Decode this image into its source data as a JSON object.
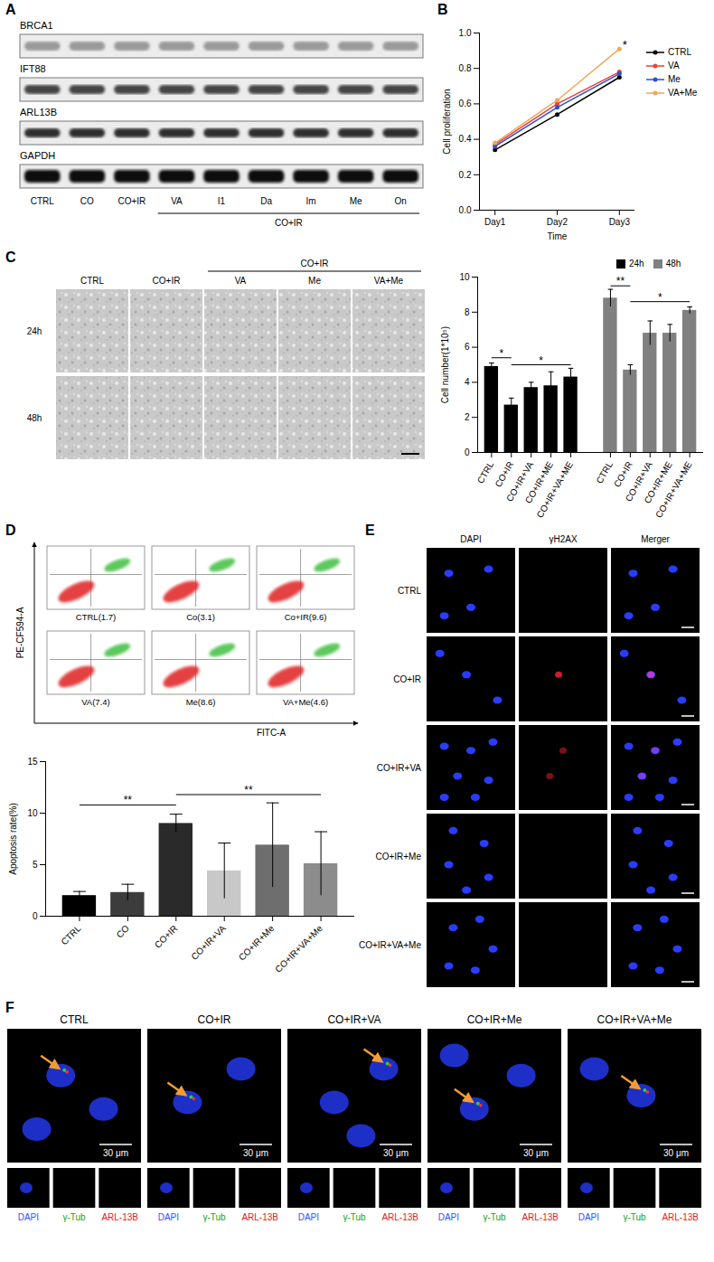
{
  "western_blot": {
    "panel": "A",
    "proteins": [
      "BRCA1",
      "IFT88",
      "ARL13B",
      "GAPDH"
    ],
    "lanes": [
      "CTRL",
      "CO",
      "CO+IR",
      "VA",
      "I1",
      "Da",
      "Im",
      "Me",
      "On"
    ],
    "group_label": "CO+IR",
    "group_from": "VA",
    "group_to": "On"
  },
  "chart_data": [
    {
      "panel": "B",
      "type": "line",
      "categories": [
        "Day1",
        "Day2",
        "Day3"
      ],
      "xlabel": "Time",
      "ylabel": "Cell proliferation",
      "ylim": [
        0,
        1
      ],
      "yticks": [
        {
          "value": 0,
          "label": "0.0"
        },
        0.2,
        0.4,
        0.6,
        0.8,
        {
          "value": 1,
          "label": "1.0"
        }
      ],
      "marker": "circle",
      "legend": "right",
      "series": [
        {
          "name": "CTRL",
          "color": "#000000",
          "values": [
            0.34,
            0.54,
            0.75
          ]
        },
        {
          "name": "VA",
          "color": "#e8413c",
          "values": [
            0.37,
            0.6,
            0.78
          ]
        },
        {
          "name": "Me",
          "color": "#2f4fc9",
          "values": [
            0.36,
            0.58,
            0.77
          ]
        },
        {
          "name": "VA+Me",
          "color": "#f2a65a",
          "values": [
            0.38,
            0.62,
            0.91
          ]
        }
      ],
      "annotations": [
        {
          "text": "*",
          "x": "Day3",
          "y": 0.93
        }
      ]
    },
    {
      "panel": "C",
      "type": "bar",
      "categories": [
        "CTRL",
        "CO+IR",
        "CO+IR+VA",
        "CO+IR+ME",
        "CO+IR+VA+ME"
      ],
      "ylabel": "Cell number(1*10⁵)",
      "ylim": [
        0,
        10
      ],
      "yticks": [
        0,
        2,
        4,
        6,
        8,
        10
      ],
      "legend": "top",
      "series": [
        {
          "name": "24h",
          "color": "#000000",
          "values": [
            4.9,
            2.7,
            3.7,
            3.8,
            4.3
          ],
          "errors": [
            0.2,
            0.4,
            0.3,
            0.8,
            0.5
          ]
        },
        {
          "name": "48h",
          "color": "#808080",
          "values": [
            8.8,
            4.7,
            6.8,
            6.8,
            8.1
          ],
          "errors": [
            0.5,
            0.3,
            0.7,
            0.5,
            0.2
          ]
        }
      ],
      "annotations": [
        {
          "text": "*",
          "series": "24h",
          "from": "CTRL",
          "to": "CO+IR",
          "y": 5.4
        },
        {
          "text": "*",
          "series": "24h",
          "from": "CO+IR",
          "to": "CO+IR+VA+ME",
          "y": 5.0
        },
        {
          "text": "**",
          "series": "48h",
          "from": "CTRL",
          "to": "CO+IR",
          "y": 9.5
        },
        {
          "text": "*",
          "series": "48h",
          "from": "CO+IR",
          "to": "CO+IR+VA+ME",
          "y": 8.6
        }
      ]
    },
    {
      "panel": "D",
      "type": "bar",
      "categories": [
        "CTRL",
        "CO",
        "CO+IR",
        "CO+IR+VA",
        "CO+IR+Me",
        "CO+IR+VA+Me"
      ],
      "values": [
        2.0,
        2.3,
        9.0,
        4.4,
        6.9,
        5.1
      ],
      "errors": [
        0.4,
        0.8,
        0.9,
        2.7,
        4.1,
        3.1
      ],
      "colors": [
        "#000000",
        "#3c3c3c",
        "#2a2a2a",
        "#c8c8c8",
        "#6e6e6e",
        "#8c8c8c"
      ],
      "ylabel": "Apoptosis rate(%)",
      "ylim": [
        0,
        15
      ],
      "yticks": [
        0,
        5,
        10,
        15
      ],
      "annotations": [
        {
          "text": "**",
          "from": "CTRL",
          "to": "CO+IR",
          "y": 10.8
        },
        {
          "text": "**",
          "from": "CO+IR",
          "to": "CO+IR+VA+Me",
          "y": 11.8
        }
      ]
    }
  ],
  "cell_images": {
    "panel": "C",
    "columns": [
      "CTRL",
      "CO+IR",
      "VA",
      "Me",
      "VA+Me"
    ],
    "rows": [
      "24h",
      "48h"
    ],
    "group_label": "CO+IR",
    "group_from": "VA",
    "group_to": "VA+Me"
  },
  "flow_cytometry": {
    "panel": "D",
    "ylabel": "PE-CF594-A",
    "xlabel": "FITC-A",
    "plots": [
      "CTRL(1.7)",
      "Co(3.1)",
      "Co+IR(9.6)",
      "VA(7.4)",
      "Me(8.6)",
      "VA+Me(4.6)"
    ]
  },
  "gamma_h2ax_staining": {
    "panel": "E",
    "columns": [
      "DAPI",
      "γH2AX",
      "Merger"
    ],
    "rows": [
      "CTRL",
      "CO+IR",
      "CO+IR+VA",
      "CO+IR+Me",
      "CO+IR+VA+Me"
    ]
  },
  "cilia_staining": {
    "panel": "F",
    "conditions": [
      "CTRL",
      "CO+IR",
      "CO+IR+VA",
      "CO+IR+Me",
      "CO+IR+VA+Me"
    ],
    "scale_bar": "30 μm",
    "channels": [
      "DAPI",
      "γ-Tub",
      "ARL-13B"
    ]
  }
}
